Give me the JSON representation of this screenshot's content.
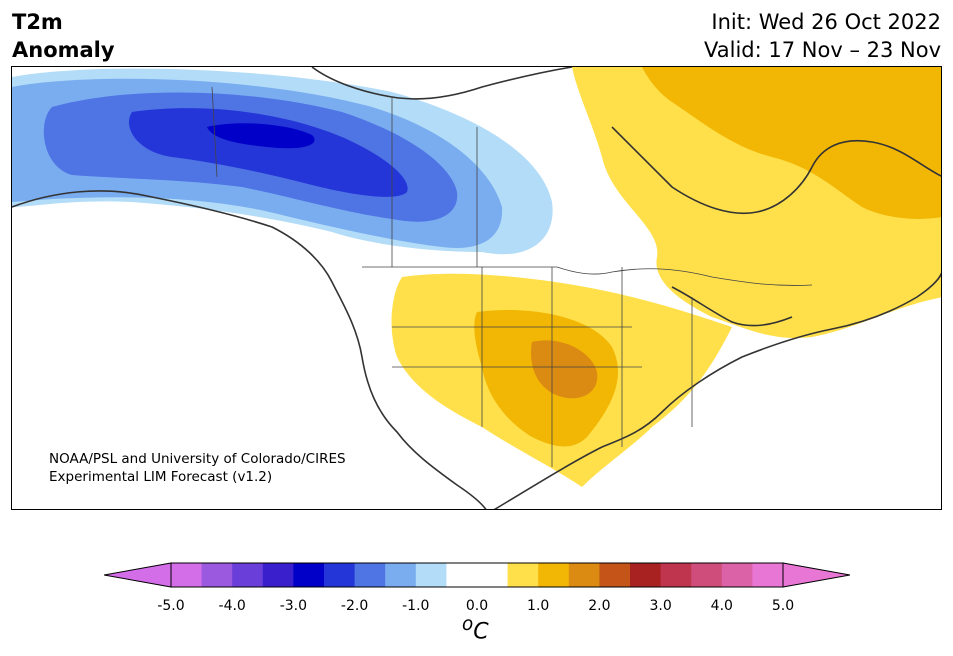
{
  "header": {
    "title_line1": "T2m",
    "title_line2": "Anomaly",
    "init_text": "Init: Wed 26 Oct 2022",
    "valid_text": "Valid: 17 Nov – 23 Nov"
  },
  "credit": {
    "line1": "NOAA/PSL and University of Colorado/CIRES",
    "line2": "Experimental LIM Forecast (v1.2)"
  },
  "colorbar": {
    "unit_prefix": "o",
    "unit_symbol": "C",
    "ticks": [
      "-5.0",
      "-4.0",
      "-3.0",
      "-2.0",
      "-1.0",
      "0.0",
      "1.0",
      "2.0",
      "3.0",
      "4.0",
      "5.0"
    ],
    "colors": [
      "#d36ee8",
      "#9b59e0",
      "#6a3fd9",
      "#3a1fcc",
      "#0000c8",
      "#2436d8",
      "#4f74e4",
      "#7aadf0",
      "#b2dcf8",
      "#ffffff",
      "#ffffff",
      "#ffe04a",
      "#f2b705",
      "#db8a12",
      "#c45418",
      "#a82222",
      "#c0354e",
      "#cf4d7a",
      "#dc62a8",
      "#e876d4"
    ],
    "under_color": "#d36ee8",
    "over_color": "#e876d4"
  },
  "colors": {
    "land_outline": "#333333",
    "border": "#444444"
  }
}
